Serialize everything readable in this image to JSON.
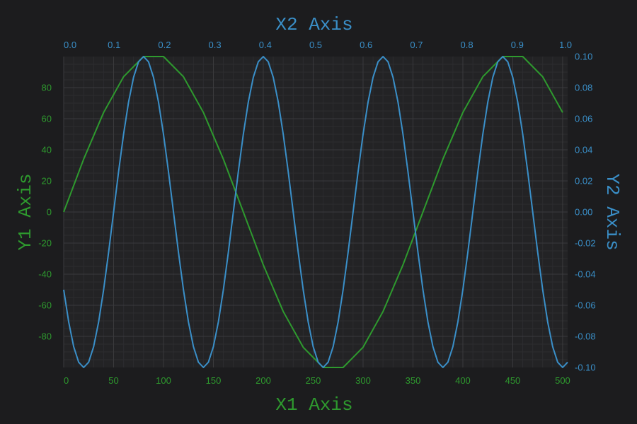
{
  "chart_data": {
    "type": "line",
    "background": "#1c1c1e",
    "plot_background": "#232325",
    "grid": true,
    "colors": {
      "green": "#2e9a2e",
      "blue": "#3a8fc8",
      "grid_major": "#3a3a3d",
      "grid_minor": "#2c2c2f"
    },
    "x1_axis": {
      "title": "X1 Axis",
      "position": "bottom",
      "range": [
        0,
        505
      ],
      "ticks": [
        0,
        50,
        100,
        150,
        200,
        250,
        300,
        350,
        400,
        450,
        500
      ],
      "tick_labels": [
        "0",
        "50",
        "100",
        "150",
        "200",
        "250",
        "300",
        "350",
        "400",
        "450",
        "500"
      ]
    },
    "x2_axis": {
      "title": "X2 Axis",
      "position": "top",
      "range": [
        0,
        1.0
      ],
      "ticks": [
        0.0,
        0.1,
        0.2,
        0.3,
        0.4,
        0.5,
        0.6,
        0.7,
        0.8,
        0.9,
        1.0
      ],
      "tick_labels": [
        "0.0",
        "0.1",
        "0.2",
        "0.3",
        "0.4",
        "0.5",
        "0.6",
        "0.7",
        "0.8",
        "0.9",
        "1.0"
      ]
    },
    "y1_axis": {
      "title": "Y1 Axis",
      "position": "left",
      "range": [
        -100,
        100
      ],
      "ticks": [
        -80,
        -60,
        -40,
        -20,
        0,
        20,
        40,
        60,
        80
      ],
      "tick_labels": [
        "-80",
        "-60",
        "-40",
        "-20",
        "0",
        "20",
        "40",
        "60",
        "80"
      ]
    },
    "y2_axis": {
      "title": "Y2 Axis",
      "position": "right",
      "range": [
        -0.1,
        0.1
      ],
      "ticks": [
        -0.1,
        -0.08,
        -0.06,
        -0.04,
        -0.02,
        0.0,
        0.02,
        0.04,
        0.06,
        0.08,
        0.1
      ],
      "tick_labels": [
        "-0.10",
        "-0.08",
        "-0.06",
        "-0.04",
        "-0.02",
        "0.00",
        "0.02",
        "0.04",
        "0.06",
        "0.08",
        "0.10"
      ]
    },
    "series": [
      {
        "axes": "x1-y1",
        "color": "#2e9a2e",
        "x": [
          0,
          20,
          40,
          60,
          80,
          100,
          120,
          140,
          160,
          180,
          200,
          220,
          240,
          260,
          280,
          300,
          320,
          340,
          360,
          380,
          400,
          420,
          440,
          460,
          480,
          500
        ],
        "y": [
          0,
          34,
          64,
          87,
          100,
          100,
          87,
          64,
          34,
          0,
          -34,
          -64,
          -87,
          -100,
          -100,
          -87,
          -64,
          -34,
          0,
          34,
          64,
          87,
          100,
          100,
          87,
          64
        ]
      },
      {
        "axes": "x1-y2",
        "color": "#3a8fc8",
        "x": [
          0,
          5,
          10,
          15,
          20,
          25,
          30,
          35,
          40,
          45,
          50,
          55,
          60,
          65,
          70,
          75,
          80,
          85,
          90,
          95,
          100,
          105,
          110,
          115,
          120,
          125,
          130,
          135,
          140,
          145,
          150,
          155,
          160,
          165,
          170,
          175,
          180,
          185,
          190,
          195,
          200,
          205,
          210,
          215,
          220,
          225,
          230,
          235,
          240,
          245,
          250,
          255,
          260,
          265,
          270,
          275,
          280,
          285,
          290,
          295,
          300,
          305,
          310,
          315,
          320,
          325,
          330,
          335,
          340,
          345,
          350,
          355,
          360,
          365,
          370,
          375,
          380,
          385,
          390,
          395,
          400,
          405,
          410,
          415,
          420,
          425,
          430,
          435,
          440,
          445,
          450,
          455,
          460,
          465,
          470,
          475,
          480,
          485,
          490,
          495,
          500,
          505
        ],
        "y": [
          -0.05,
          -0.0707,
          -0.0866,
          -0.0966,
          -0.1,
          -0.0966,
          -0.0866,
          -0.0707,
          -0.05,
          -0.0259,
          0,
          0.0259,
          0.05,
          0.0707,
          0.0866,
          0.0966,
          0.1,
          0.0966,
          0.0866,
          0.0707,
          0.05,
          0.0259,
          0,
          -0.0259,
          -0.05,
          -0.0707,
          -0.0866,
          -0.0966,
          -0.1,
          -0.0966,
          -0.0866,
          -0.0707,
          -0.05,
          -0.0259,
          0,
          0.0259,
          0.05,
          0.0707,
          0.0866,
          0.0966,
          0.1,
          0.0966,
          0.0866,
          0.0707,
          0.05,
          0.0259,
          0,
          -0.0259,
          -0.05,
          -0.0707,
          -0.0866,
          -0.0966,
          -0.1,
          -0.0966,
          -0.0866,
          -0.0707,
          -0.05,
          -0.0259,
          0,
          0.0259,
          0.05,
          0.0707,
          0.0866,
          0.0966,
          0.1,
          0.0966,
          0.0866,
          0.0707,
          0.05,
          0.0259,
          0,
          -0.0259,
          -0.05,
          -0.0707,
          -0.0866,
          -0.0966,
          -0.1,
          -0.0966,
          -0.0866,
          -0.0707,
          -0.05,
          -0.0259,
          0,
          0.0259,
          0.05,
          0.0707,
          0.0866,
          0.0966,
          0.1,
          0.0966,
          0.0866,
          0.0707,
          0.05,
          0.0259,
          0,
          -0.0259,
          -0.05,
          -0.0707,
          -0.0866,
          -0.0966,
          -0.1,
          -0.0966
        ]
      }
    ]
  }
}
